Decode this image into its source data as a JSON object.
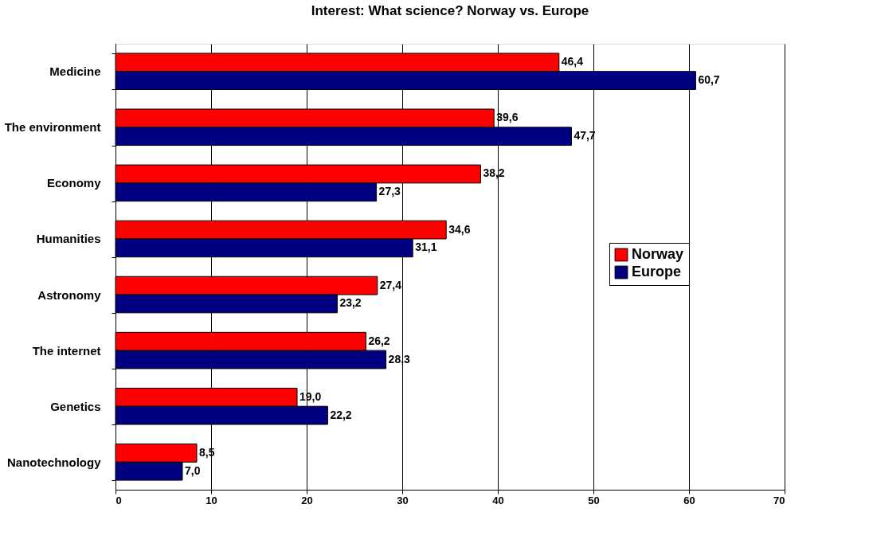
{
  "chart_data": {
    "type": "bar",
    "orientation": "horizontal",
    "title": "Interest: What science? Norway vs. Europe",
    "categories": [
      "Medicine",
      "The environment",
      "Economy",
      "Humanities",
      "Astronomy",
      "The internet",
      "Genetics",
      "Nanotechnology"
    ],
    "series": [
      {
        "name": "Norway",
        "color": "#ff0000",
        "values": [
          46.4,
          39.6,
          38.2,
          34.6,
          27.4,
          26.2,
          19.0,
          8.5
        ],
        "value_labels": [
          "46,4",
          "39,6",
          "38,2",
          "34,6",
          "27,4",
          "26,2",
          "19,0",
          "8,5"
        ]
      },
      {
        "name": "Europe",
        "color": "#000080",
        "values": [
          60.7,
          47.7,
          27.3,
          31.1,
          23.2,
          28.3,
          22.2,
          7.0
        ],
        "value_labels": [
          "60,7",
          "47,7",
          "27,3",
          "31,1",
          "23,2",
          "28,3",
          "22,2",
          "7,0"
        ]
      }
    ],
    "xlim": [
      0,
      70
    ],
    "xticks": [
      0,
      10,
      20,
      30,
      40,
      50,
      60,
      70
    ],
    "grid": "x",
    "legend": "right"
  }
}
